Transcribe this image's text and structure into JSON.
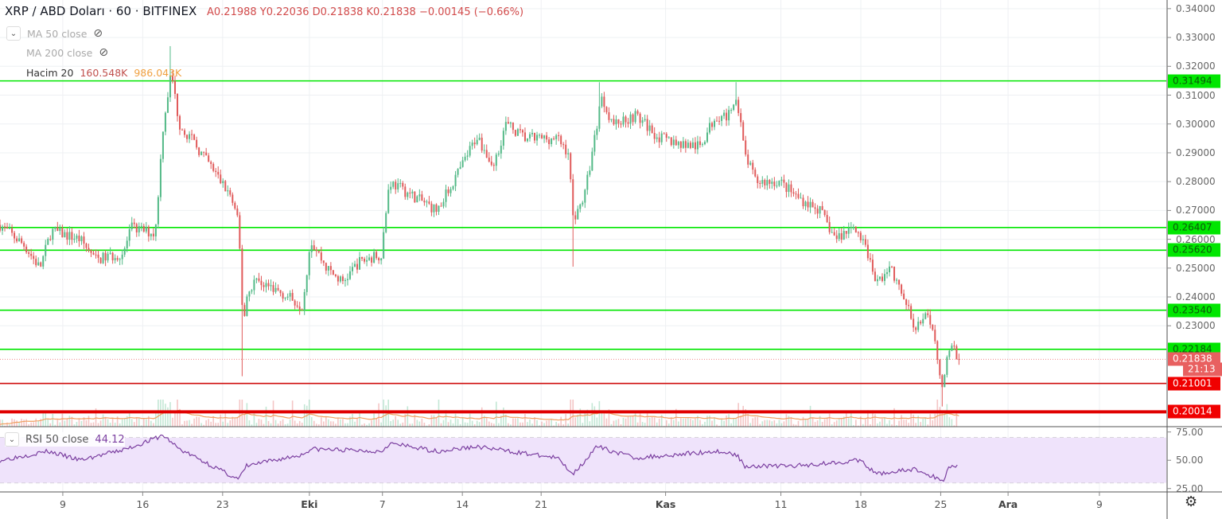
{
  "header": {
    "symbol": "XRP / ABD Doları · 60 · BITFINEX",
    "ohlc": "A0.21988  Y0.22036  D0.21838  K0.21838  −0.00145 (−0.66%)"
  },
  "indicators": [
    {
      "label": "MA 50 close",
      "icon": "eye-off-icon"
    },
    {
      "label": "MA 200 close",
      "icon": "eye-off-icon"
    },
    {
      "label": "Hacim 20",
      "value1": "160.548K",
      "value2": "986.043K"
    }
  ],
  "rsi": {
    "label": "RSI 50 close",
    "value": "44.12"
  },
  "countdown": "21:13",
  "colors": {
    "up": "#53b987",
    "down": "#e05a5a",
    "support": "#00e600",
    "resistance": "#e00000",
    "rsi": "#7b3fa0",
    "rsi_band": "#efe3fb",
    "volume_ma": "#f0a060"
  },
  "chart_data": {
    "type": "candlestick",
    "title": "XRP / ABD Doları · 60 · BITFINEX",
    "price_axis": {
      "min": 0.195,
      "max": 0.343,
      "ticks": [
        "0.34000",
        "0.33000",
        "0.32000",
        "0.31000",
        "0.30000",
        "0.29000",
        "0.28000",
        "0.27000",
        "0.26000",
        "0.25000",
        "0.24000",
        "0.23000"
      ]
    },
    "time_axis": {
      "ticks": [
        {
          "label": "9",
          "day": 5.5
        },
        {
          "label": "16",
          "day": 12.5
        },
        {
          "label": "23",
          "day": 19.5
        },
        {
          "label": "Eki",
          "day": 27.1,
          "bold": true
        },
        {
          "label": "7",
          "day": 33.5
        },
        {
          "label": "14",
          "day": 40.5
        },
        {
          "label": "21",
          "day": 47.4
        },
        {
          "label": "Kas",
          "day": 58.3,
          "bold": true
        },
        {
          "label": "11",
          "day": 68.4
        },
        {
          "label": "18",
          "day": 75.4
        },
        {
          "label": "25",
          "day": 82.4
        },
        {
          "label": "Ara",
          "day": 88.3,
          "bold": true
        },
        {
          "label": "9",
          "day": 96.3
        }
      ]
    },
    "close_path_day_price": [
      [
        0,
        0.265
      ],
      [
        2.1,
        0.258
      ],
      [
        3.5,
        0.25
      ],
      [
        4.5,
        0.263
      ],
      [
        7.0,
        0.26
      ],
      [
        8.4,
        0.253
      ],
      [
        10.8,
        0.255
      ],
      [
        11.5,
        0.264
      ],
      [
        13.6,
        0.262
      ],
      [
        14.3,
        0.3
      ],
      [
        15.0,
        0.318
      ],
      [
        15.7,
        0.3
      ],
      [
        16.7,
        0.295
      ],
      [
        18.5,
        0.285
      ],
      [
        20.2,
        0.275
      ],
      [
        20.9,
        0.265
      ],
      [
        21.3,
        0.23
      ],
      [
        21.6,
        0.24
      ],
      [
        22.3,
        0.246
      ],
      [
        24.4,
        0.242
      ],
      [
        26.5,
        0.237
      ],
      [
        27.2,
        0.26
      ],
      [
        28.6,
        0.25
      ],
      [
        30.0,
        0.245
      ],
      [
        31.4,
        0.252
      ],
      [
        33.4,
        0.255
      ],
      [
        34.1,
        0.28
      ],
      [
        36.2,
        0.275
      ],
      [
        38.3,
        0.27
      ],
      [
        40.4,
        0.285
      ],
      [
        41.8,
        0.296
      ],
      [
        43.2,
        0.285
      ],
      [
        44.3,
        0.3
      ],
      [
        46.0,
        0.295
      ],
      [
        48.8,
        0.295
      ],
      [
        49.8,
        0.29
      ],
      [
        50.2,
        0.267
      ],
      [
        51.2,
        0.275
      ],
      [
        52.3,
        0.3
      ],
      [
        52.6,
        0.31
      ],
      [
        53.7,
        0.3
      ],
      [
        55.7,
        0.303
      ],
      [
        57.8,
        0.295
      ],
      [
        59.9,
        0.293
      ],
      [
        61.3,
        0.292
      ],
      [
        62.7,
        0.303
      ],
      [
        64.1,
        0.303
      ],
      [
        64.5,
        0.311
      ],
      [
        65.2,
        0.29
      ],
      [
        66.2,
        0.28
      ],
      [
        68.3,
        0.28
      ],
      [
        69.7,
        0.275
      ],
      [
        71.8,
        0.27
      ],
      [
        73.2,
        0.26
      ],
      [
        74.9,
        0.265
      ],
      [
        76.0,
        0.255
      ],
      [
        76.7,
        0.245
      ],
      [
        78.0,
        0.25
      ],
      [
        79.4,
        0.237
      ],
      [
        80.1,
        0.23
      ],
      [
        81.2,
        0.233
      ],
      [
        81.9,
        0.225
      ],
      [
        82.6,
        0.207
      ],
      [
        82.9,
        0.22
      ],
      [
        83.5,
        0.222
      ],
      [
        84.0,
        0.2184
      ]
    ],
    "wicks": [
      {
        "day": 15.0,
        "high": 0.327
      },
      {
        "day": 21.3,
        "low": 0.2125
      },
      {
        "day": 50.2,
        "low": 0.2505
      },
      {
        "day": 52.6,
        "high": 0.3145
      },
      {
        "day": 64.5,
        "high": 0.3145
      },
      {
        "day": 82.6,
        "low": 0.202
      }
    ],
    "horizontal_levels": [
      {
        "price": 0.31494,
        "label": "0.31494",
        "kind": "support"
      },
      {
        "price": 0.26407,
        "label": "0.26407",
        "kind": "support"
      },
      {
        "price": 0.2562,
        "label": "0.25620",
        "kind": "support"
      },
      {
        "price": 0.2354,
        "label": "0.23540",
        "kind": "support"
      },
      {
        "price": 0.22184,
        "label": "0.22184",
        "kind": "support"
      },
      {
        "price": 0.21838,
        "label": "0.21838",
        "kind": "last"
      },
      {
        "price": 0.21001,
        "label": "0.21001",
        "kind": "resistance"
      },
      {
        "price": 0.20014,
        "label": "0.20014",
        "kind": "resistance-thick"
      }
    ],
    "rsi_axis": {
      "min": 22,
      "max": 79,
      "ticks": [
        "75.00",
        "50.00",
        "25.00"
      ],
      "band": [
        30,
        70
      ]
    },
    "rsi_path_day_value": [
      [
        0,
        50
      ],
      [
        4.2,
        58
      ],
      [
        7.0,
        50
      ],
      [
        11.1,
        60
      ],
      [
        14.3,
        72
      ],
      [
        15.7,
        60
      ],
      [
        20.9,
        33
      ],
      [
        21.6,
        45
      ],
      [
        26.5,
        55
      ],
      [
        27.2,
        60
      ],
      [
        33.4,
        58
      ],
      [
        34.1,
        65
      ],
      [
        38.3,
        58
      ],
      [
        41.8,
        62
      ],
      [
        48.8,
        52
      ],
      [
        50.2,
        38
      ],
      [
        52.3,
        62
      ],
      [
        55.7,
        52
      ],
      [
        62.7,
        58
      ],
      [
        64.5,
        55
      ],
      [
        65.2,
        45
      ],
      [
        69.7,
        45
      ],
      [
        75.3,
        50
      ],
      [
        76.7,
        38
      ],
      [
        80.1,
        42
      ],
      [
        82.6,
        32
      ],
      [
        83.2,
        45
      ],
      [
        84.0,
        45
      ]
    ]
  }
}
